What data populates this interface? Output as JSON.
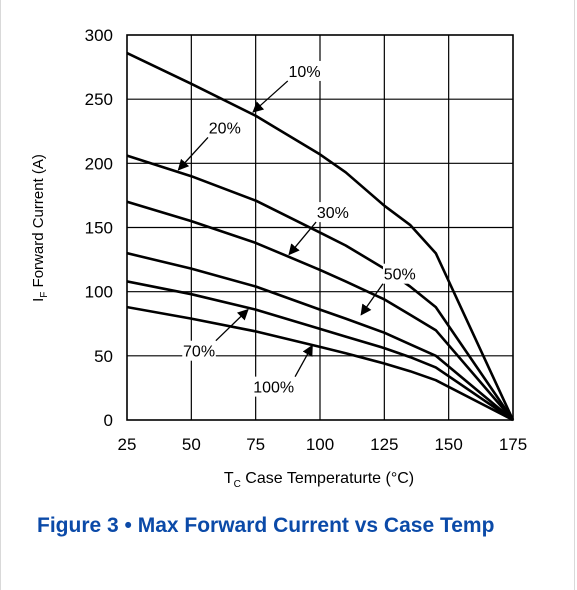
{
  "figure": {
    "caption": "Figure 3 • Max Forward Current vs Case Temp",
    "caption_color": "#0b4aa8"
  },
  "chart_data": {
    "type": "line",
    "title": "",
    "xlabel": {
      "prefix": "T",
      "subscript": "C",
      "text": " Case Temperaturte (°C)"
    },
    "ylabel": {
      "prefix": "I",
      "subscript": "F",
      "text": " Forward Current (A)"
    },
    "xlim": [
      25,
      175
    ],
    "ylim": [
      0,
      300
    ],
    "xticks": [
      25,
      50,
      75,
      100,
      125,
      150,
      175
    ],
    "yticks": [
      0,
      50,
      100,
      150,
      200,
      250,
      300
    ],
    "grid": true,
    "series": [
      {
        "name": "10%",
        "x": [
          25,
          50,
          75,
          100,
          110,
          125,
          135,
          145,
          175
        ],
        "y": [
          286,
          262,
          237,
          207,
          193,
          167,
          152,
          130,
          0
        ]
      },
      {
        "name": "20%",
        "x": [
          25,
          50,
          75,
          100,
          110,
          125,
          135,
          145,
          175
        ],
        "y": [
          206,
          190,
          171,
          146,
          136,
          118,
          104,
          88,
          0
        ]
      },
      {
        "name": "30%",
        "x": [
          25,
          50,
          75,
          100,
          110,
          125,
          135,
          145,
          175
        ],
        "y": [
          170,
          155,
          138,
          117,
          108,
          94,
          82,
          70,
          0
        ]
      },
      {
        "name": "50%",
        "x": [
          25,
          50,
          75,
          100,
          110,
          125,
          135,
          145,
          175
        ],
        "y": [
          130,
          118,
          104,
          86,
          79,
          68,
          59,
          50,
          0
        ]
      },
      {
        "name": "70%",
        "x": [
          25,
          50,
          75,
          100,
          110,
          125,
          135,
          145,
          175
        ],
        "y": [
          108,
          98,
          86,
          71,
          65,
          56,
          49,
          41,
          0
        ]
      },
      {
        "name": "100%",
        "x": [
          25,
          50,
          75,
          100,
          110,
          125,
          135,
          145,
          175
        ],
        "y": [
          88,
          79,
          69,
          57,
          52,
          44,
          38,
          31,
          0
        ]
      }
    ],
    "annotations": [
      {
        "text": "10%",
        "series": "10%",
        "tip": [
          74,
          240
        ],
        "label_at": [
          94,
          272
        ]
      },
      {
        "text": "20%",
        "series": "20%",
        "tip": [
          45,
          195
        ],
        "label_at": [
          63,
          228
        ]
      },
      {
        "text": "30%",
        "series": "30%",
        "tip": [
          88,
          129
        ],
        "label_at": [
          105,
          162
        ]
      },
      {
        "text": "50%",
        "series": "50%",
        "tip": [
          116,
          82
        ],
        "label_at": [
          131,
          114
        ]
      },
      {
        "text": "70%",
        "series": "70%",
        "tip": [
          72,
          86
        ],
        "label_at": [
          53,
          54
        ]
      },
      {
        "text": "100%",
        "series": "100%",
        "tip": [
          97,
          58
        ],
        "label_at": [
          82,
          26
        ]
      }
    ]
  }
}
